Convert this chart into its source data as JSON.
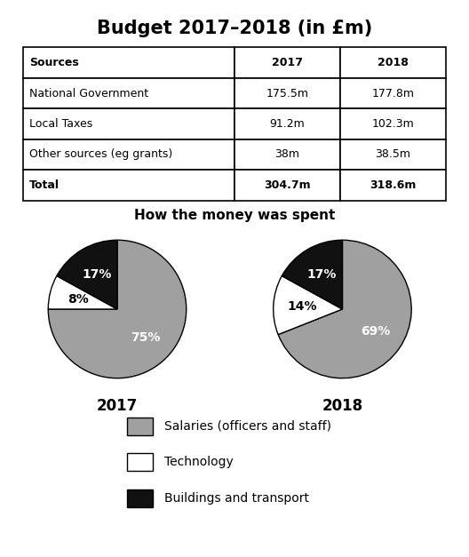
{
  "title": "Budget 2017–2018 (in £m)",
  "table": {
    "headers": [
      "Sources",
      "2017",
      "2018"
    ],
    "rows": [
      [
        "National Government",
        "175.5m",
        "177.8m"
      ],
      [
        "Local Taxes",
        "91.2m",
        "102.3m"
      ],
      [
        "Other sources (eg grants)",
        "38m",
        "38.5m"
      ],
      [
        "Total",
        "304.7m",
        "318.6m"
      ]
    ]
  },
  "pie_title": "How the money was spent",
  "pie_2017": {
    "label": "2017",
    "values": [
      75,
      8,
      17
    ],
    "pct_labels": [
      "75%",
      "8%",
      "17%"
    ],
    "colors": [
      "#a0a0a0",
      "#ffffff",
      "#111111"
    ],
    "startangle": 90,
    "counterclock": false
  },
  "pie_2018": {
    "label": "2018",
    "values": [
      69,
      14,
      17
    ],
    "pct_labels": [
      "69%",
      "14%",
      "17%"
    ],
    "colors": [
      "#a0a0a0",
      "#ffffff",
      "#111111"
    ],
    "startangle": 90,
    "counterclock": false
  },
  "legend_items": [
    {
      "label": "Salaries (officers and staff)",
      "color": "#a0a0a0"
    },
    {
      "label": "Technology",
      "color": "#ffffff"
    },
    {
      "label": "Buildings and transport",
      "color": "#111111"
    }
  ],
  "title_fontsize": 15,
  "pie_title_fontsize": 11,
  "table_fontsize": 9,
  "label_fontsize": 10,
  "year_label_fontsize": 12,
  "legend_fontsize": 10,
  "background_color": "#ffffff"
}
